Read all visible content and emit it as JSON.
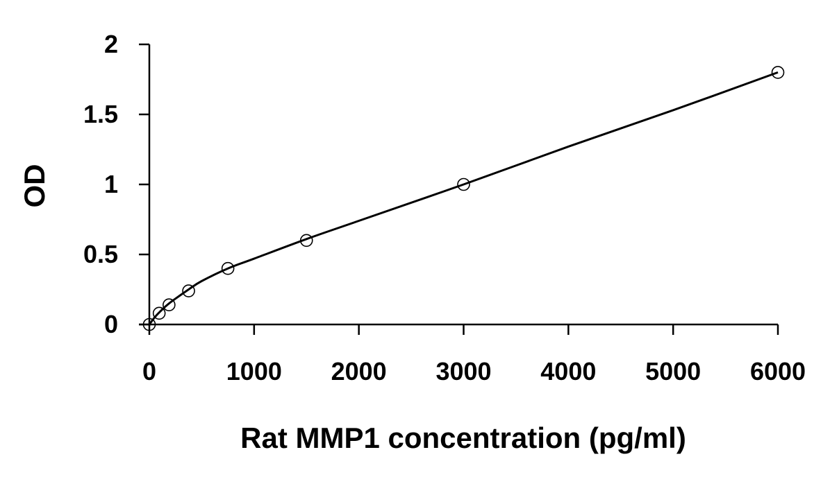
{
  "chart_data": {
    "type": "scatter",
    "title": "",
    "xlabel": "Rat MMP1 concentration (pg/ml)",
    "ylabel": "OD",
    "xlim": [
      0,
      6000
    ],
    "ylim": [
      0,
      2
    ],
    "x_ticks": [
      0,
      1000,
      2000,
      3000,
      4000,
      5000,
      6000
    ],
    "y_ticks": [
      0,
      0.5,
      1,
      1.5,
      2
    ],
    "x_tick_labels": [
      "0",
      "1000",
      "2000",
      "3000",
      "4000",
      "5000",
      "6000"
    ],
    "y_tick_labels": [
      "0",
      "0.5",
      "1",
      "1.5",
      "2"
    ],
    "grid": false,
    "legend": "none",
    "marker": "open-circle",
    "trendline": "smooth-curve",
    "series": [
      {
        "x": [
          0,
          94,
          188,
          375,
          750,
          1500,
          3000,
          6000
        ],
        "y": [
          0,
          0.08,
          0.14,
          0.24,
          0.4,
          0.6,
          1.0,
          1.8
        ]
      }
    ],
    "fit_curve": {
      "x": [
        0,
        50,
        100,
        188,
        375,
        500,
        750,
        1000,
        1500,
        2000,
        3000,
        4000,
        5000,
        6000
      ],
      "y": [
        0,
        0.05,
        0.09,
        0.15,
        0.25,
        0.31,
        0.4,
        0.47,
        0.61,
        0.74,
        1.0,
        1.27,
        1.53,
        1.8
      ]
    }
  }
}
